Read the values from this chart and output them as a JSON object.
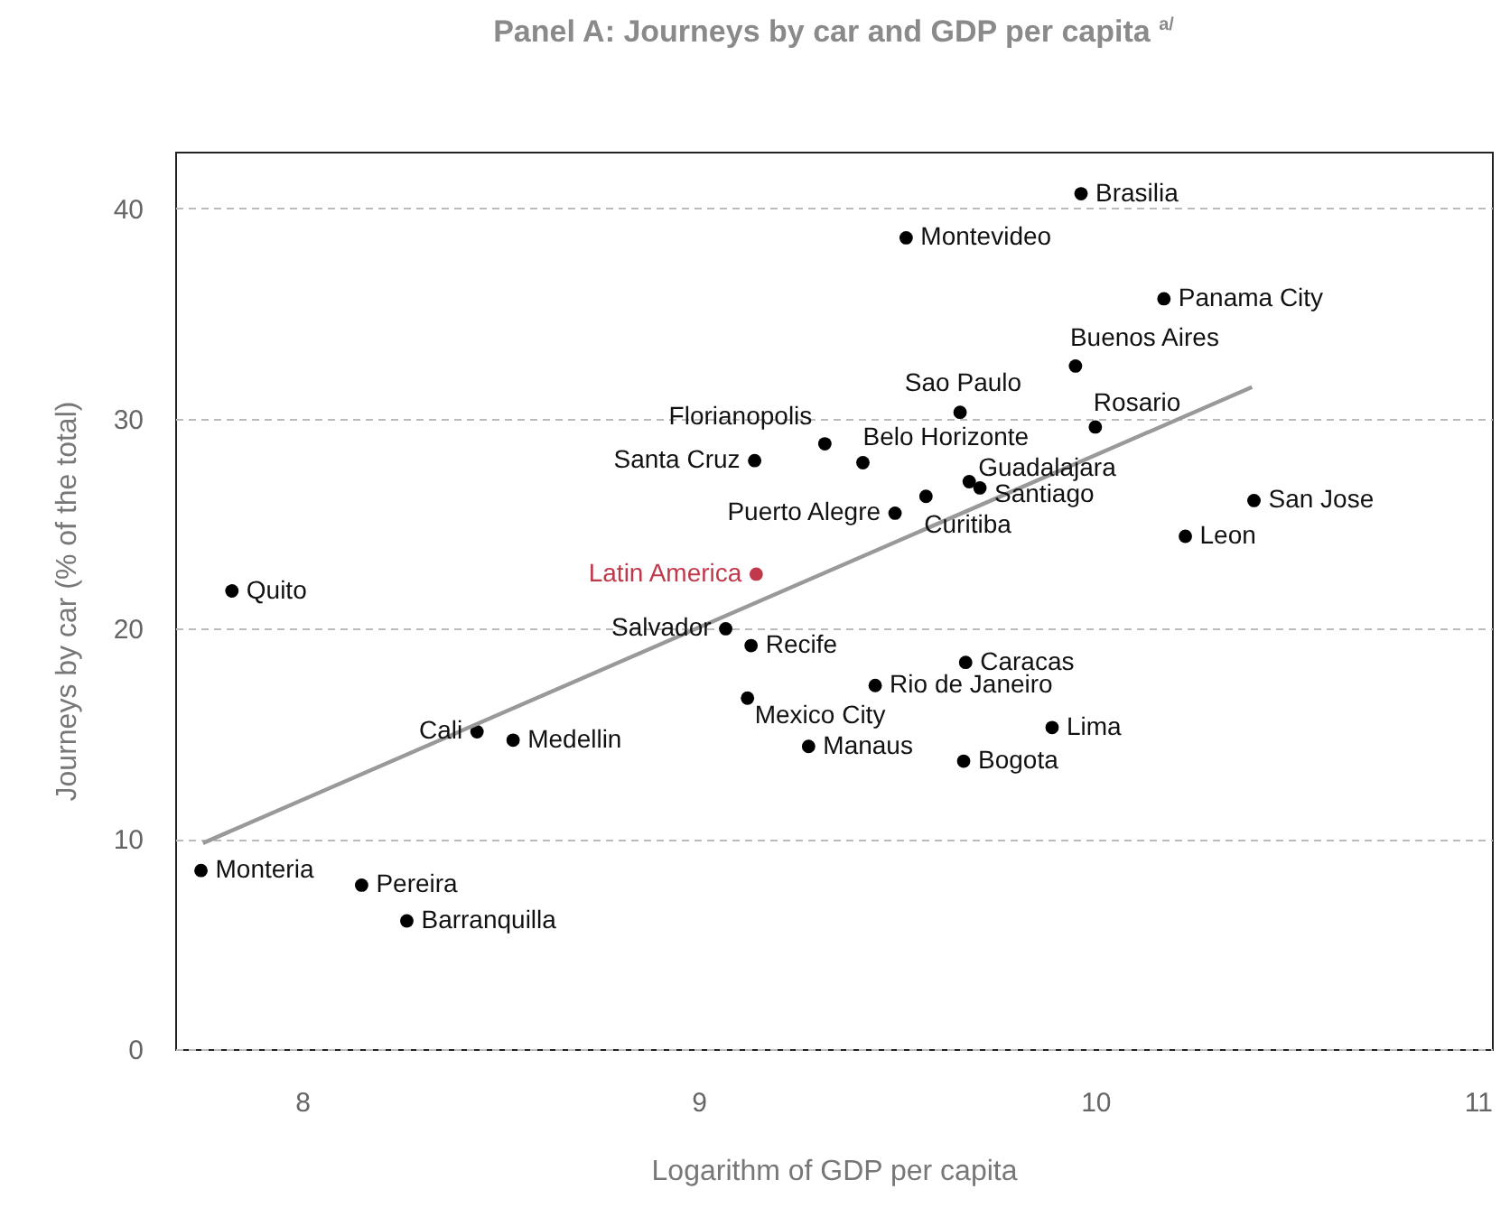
{
  "chart_data": {
    "type": "scatter",
    "title": "Panel A: Journeys by car and GDP per capita $^{a/}$",
    "xlabel": "Logarithm of GDP per capita",
    "ylabel": "Journeys by car (% of the total)",
    "xlim": [
      7.68,
      11
    ],
    "ylim": [
      0,
      42.7
    ],
    "xticks": [
      8,
      9,
      10,
      11
    ],
    "yticks": [
      0,
      10,
      20,
      30,
      40
    ],
    "grid": "y",
    "series": [
      {
        "marker": "circle",
        "color": "#000000",
        "x": [
          9.964,
          9.523,
          10.173,
          9.95,
          9.659,
          10.0,
          9.318,
          9.141,
          9.414,
          9.682,
          9.709,
          9.495,
          9.573,
          10.4,
          10.227,
          7.823,
          9.068,
          9.132,
          9.673,
          9.445,
          9.123,
          9.891,
          8.441,
          8.532,
          9.277,
          9.668,
          7.745,
          8.15,
          8.264
        ],
        "values": [
          40.7,
          38.6,
          35.7,
          32.5,
          30.3,
          29.6,
          28.8,
          28.0,
          27.9,
          27.0,
          26.7,
          25.5,
          26.3,
          26.1,
          24.4,
          21.8,
          20.0,
          19.2,
          18.4,
          17.3,
          16.7,
          15.3,
          15.1,
          14.7,
          14.4,
          13.7,
          8.5,
          7.8,
          6.1
        ]
      },
      {
        "marker": "circle",
        "color": "#c0394b",
        "x": [
          9.145
        ],
        "values": [
          22.6
        ]
      },
      {
        "type": "line",
        "marker": "none",
        "color": "#999999",
        "x": [
          7.75,
          10.395
        ],
        "values": [
          9.8,
          31.5
        ]
      }
    ],
    "annotations": [
      {
        "text": "Brasilia",
        "x": 9.964,
        "y": 40.7
      },
      {
        "text": "Montevideo",
        "x": 9.523,
        "y": 38.6
      },
      {
        "text": "Panama City",
        "x": 10.173,
        "y": 35.7
      },
      {
        "text": "Buenos Aires",
        "x": 9.95,
        "y": 32.5
      },
      {
        "text": "Sao Paulo",
        "x": 9.659,
        "y": 30.3
      },
      {
        "text": "Rosario",
        "x": 10.0,
        "y": 29.6
      },
      {
        "text": "Florianopolis",
        "x": 9.318,
        "y": 28.8
      },
      {
        "text": "Santa Cruz",
        "x": 9.141,
        "y": 28.0
      },
      {
        "text": "Belo Horizonte",
        "x": 9.414,
        "y": 27.9
      },
      {
        "text": "Guadalajara",
        "x": 9.682,
        "y": 27.0
      },
      {
        "text": "Santiago",
        "x": 9.709,
        "y": 26.7
      },
      {
        "text": "Puerto Alegre",
        "x": 9.495,
        "y": 25.5
      },
      {
        "text": "Curitiba",
        "x": 9.573,
        "y": 26.3
      },
      {
        "text": "San Jose",
        "x": 10.4,
        "y": 26.1
      },
      {
        "text": "Leon",
        "x": 10.227,
        "y": 24.4
      },
      {
        "text": "Latin America",
        "x": 9.145,
        "y": 22.6
      },
      {
        "text": "Quito",
        "x": 7.823,
        "y": 21.8
      },
      {
        "text": "Salvador",
        "x": 9.068,
        "y": 20.0
      },
      {
        "text": "Recife",
        "x": 9.132,
        "y": 19.2
      },
      {
        "text": "Caracas",
        "x": 9.673,
        "y": 18.4
      },
      {
        "text": "Rio de Janeiro",
        "x": 9.445,
        "y": 17.3
      },
      {
        "text": "Mexico City",
        "x": 9.123,
        "y": 16.7
      },
      {
        "text": "Lima",
        "x": 9.891,
        "y": 15.3
      },
      {
        "text": "Cali",
        "x": 8.441,
        "y": 15.1
      },
      {
        "text": "Medellin",
        "x": 8.532,
        "y": 14.7
      },
      {
        "text": "Manaus",
        "x": 9.277,
        "y": 14.4
      },
      {
        "text": "Bogota",
        "x": 9.668,
        "y": 13.7
      },
      {
        "text": "Monteria",
        "x": 7.745,
        "y": 8.5
      },
      {
        "text": "Pereira",
        "x": 8.15,
        "y": 7.8
      },
      {
        "text": "Barranquilla",
        "x": 8.264,
        "y": 6.1
      }
    ]
  }
}
